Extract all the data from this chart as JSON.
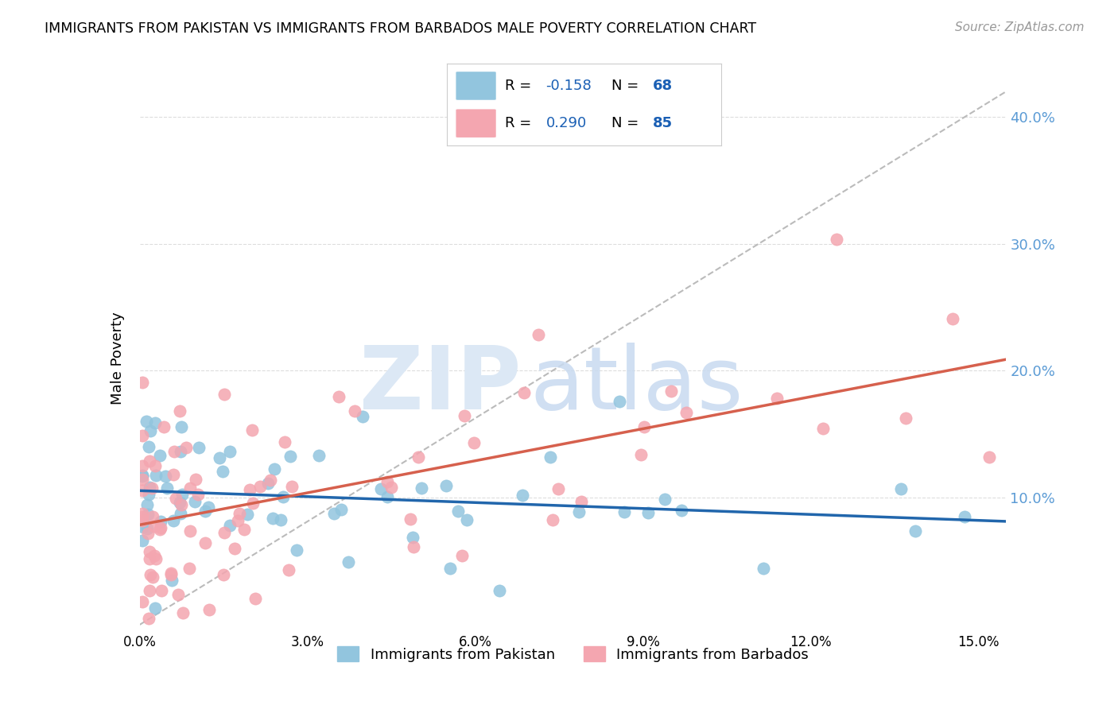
{
  "title": "IMMIGRANTS FROM PAKISTAN VS IMMIGRANTS FROM BARBADOS MALE POVERTY CORRELATION CHART",
  "source": "Source: ZipAtlas.com",
  "ylabel": "Male Poverty",
  "y_tick_values": [
    0.1,
    0.2,
    0.3,
    0.4
  ],
  "x_tick_positions": [
    0.0,
    0.03,
    0.06,
    0.09,
    0.12,
    0.15
  ],
  "x_tick_labels": [
    "0.0%",
    "3.0%",
    "6.0%",
    "9.0%",
    "12.0%",
    "15.0%"
  ],
  "xlim": [
    0.0,
    0.155
  ],
  "ylim": [
    -0.005,
    0.425
  ],
  "pakistan_R": -0.158,
  "pakistan_N": 68,
  "barbados_R": 0.29,
  "barbados_N": 85,
  "pakistan_color": "#92C5DE",
  "barbados_color": "#F4A6B0",
  "pakistan_line_color": "#2166AC",
  "barbados_line_color": "#D6604D",
  "diagonal_color": "#BBBBBB",
  "legend_R_color": "#1a5fb4"
}
